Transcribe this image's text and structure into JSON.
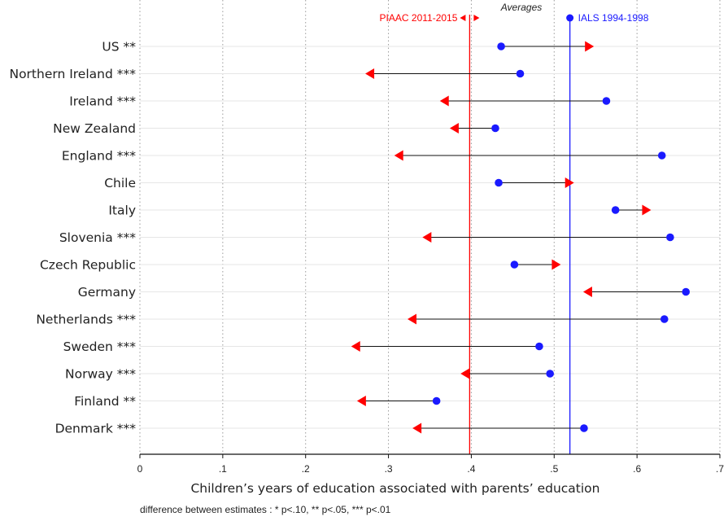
{
  "chart_data": {
    "type": "dumbbell",
    "categories": [
      "US **",
      "Northern Ireland ***",
      "Ireland ***",
      "New Zealand",
      "England ***",
      "Chile",
      "Italy",
      "Slovenia ***",
      "Czech Republic",
      "Germany",
      "Netherlands ***",
      "Sweden ***",
      "Norway ***",
      "Finland **",
      "Denmark ***"
    ],
    "series": [
      {
        "name": "IALS 1994-1998",
        "color": "#1a1aff",
        "marker": "circle",
        "values": [
          0.436,
          0.459,
          0.563,
          0.429,
          0.63,
          0.433,
          0.574,
          0.64,
          0.452,
          0.659,
          0.633,
          0.482,
          0.495,
          0.358,
          0.536
        ]
      },
      {
        "name": "PIAAC 2011-2015",
        "color": "#ff0000",
        "marker": "arrow",
        "values": [
          0.548,
          0.272,
          0.362,
          0.374,
          0.307,
          0.524,
          0.617,
          0.341,
          0.508,
          0.535,
          0.323,
          0.255,
          0.387,
          0.262,
          0.329
        ]
      }
    ],
    "averages": {
      "title": "Averages",
      "piaac": {
        "label": "PIAAC 2011-2015",
        "value": 0.398,
        "color": "#ff0000"
      },
      "ials": {
        "label": "IALS 1994-1998",
        "value": 0.519,
        "color": "#1a1aff"
      }
    },
    "xlim": [
      0,
      0.7
    ],
    "xticks": [
      0,
      0.1,
      0.2,
      0.3,
      0.4,
      0.5,
      0.6,
      0.7
    ],
    "xtick_labels": [
      "0",
      ".1",
      ".2",
      ".3",
      ".4",
      ".5",
      ".6",
      ".7"
    ],
    "xlabel": "Children’s years of education associated with parents’ education",
    "note": "difference between estimates : * p<.10, ** p<.05, *** p<.01",
    "grid": "vertical dotted"
  }
}
